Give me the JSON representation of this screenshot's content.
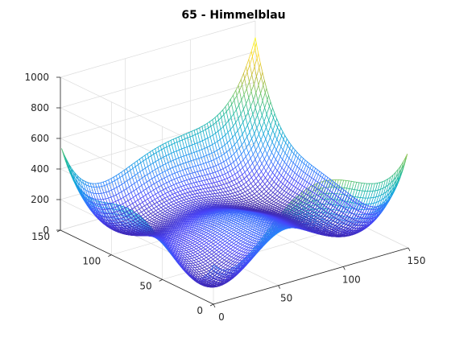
{
  "chart_data": {
    "type": "surface-mesh",
    "title": "65 - Himmelblau",
    "function": "(x^2 + y - 11)^2 + (x + y^2 - 7)^2",
    "x_samples": 150,
    "y_samples": 150,
    "x_domain": [
      -5,
      5
    ],
    "y_domain": [
      -5,
      5
    ],
    "xlim": [
      0,
      150
    ],
    "ylim": [
      0,
      150
    ],
    "zlim": [
      0,
      1000
    ],
    "x_ticks": [
      "0",
      "50",
      "100",
      "150"
    ],
    "y_ticks": [
      "0",
      "50",
      "100",
      "150"
    ],
    "z_ticks": [
      "0",
      "200",
      "400",
      "600",
      "800",
      "1000"
    ],
    "grid": true,
    "colormap": [
      "#3e26a8",
      "#4743f8",
      "#2d84fd",
      "#0fa7d9",
      "#1fbaa2",
      "#67c466",
      "#c6bc34",
      "#fbd72b",
      "#f9fb0e"
    ]
  }
}
